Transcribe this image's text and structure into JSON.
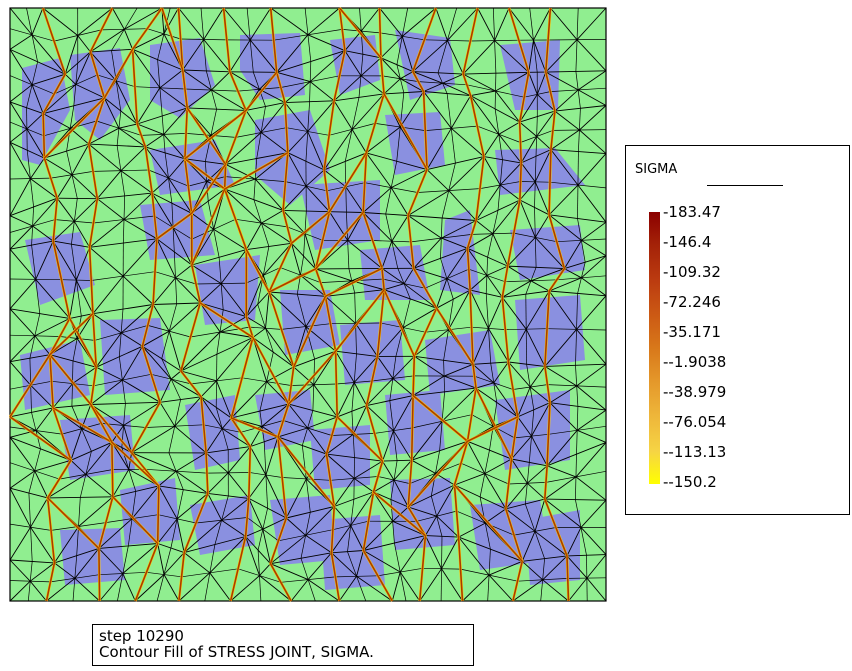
{
  "legend": {
    "title": "SIGMA",
    "labels": [
      "183.47",
      "146.4",
      "109.32",
      "72.246",
      "35.171",
      "-1.9038",
      "-38.979",
      "-76.054",
      "-113.13",
      "-150.2"
    ]
  },
  "caption": {
    "line1": "step 10290",
    "line2": "Contour Fill of STRESS JOINT, SIGMA."
  },
  "colors": {
    "block_fill": "#8a90e0",
    "background_fill": "#90ee90",
    "mesh_line": "#000000",
    "joint_line": "#a83c00",
    "joint_highlight": "#ffc800"
  }
}
